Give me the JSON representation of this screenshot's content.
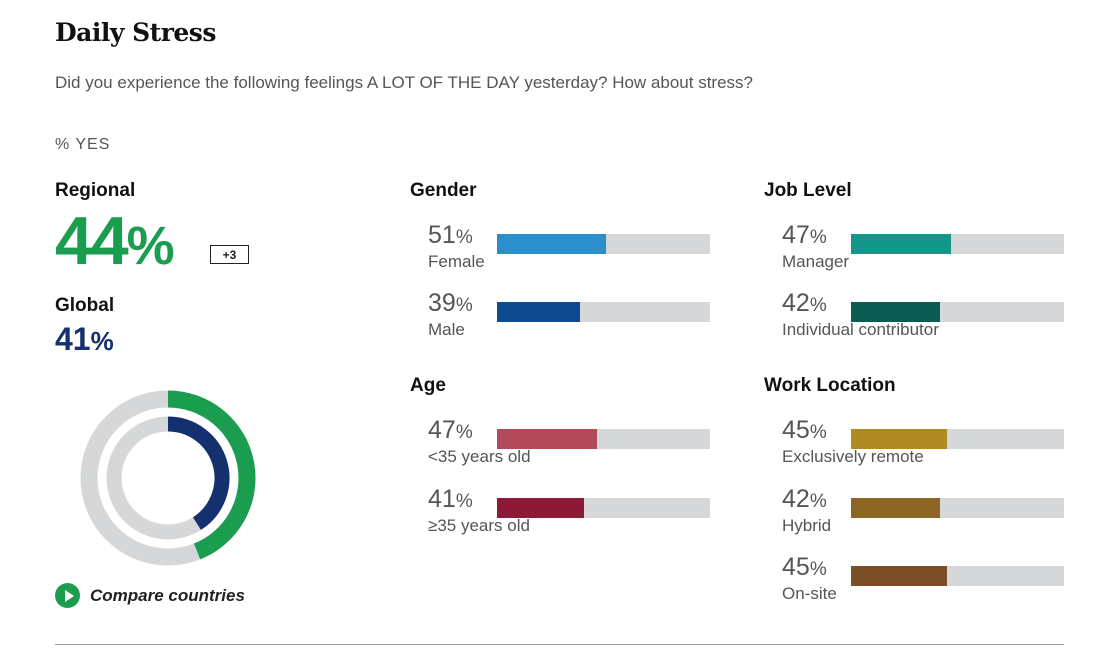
{
  "header": {
    "title": "Daily Stress",
    "question": "Did you experience the following feelings A LOT OF THE DAY yesterday? How about stress?",
    "metric_label": "% YES"
  },
  "summary": {
    "regional_label": "Regional",
    "regional_value": "44",
    "regional_pct_sign": "%",
    "regional_delta": "+3",
    "global_label": "Global",
    "global_value": "41",
    "global_pct_sign": "%",
    "compare_label": "Compare countries"
  },
  "colors": {
    "regional": "#1a9d4f",
    "global": "#14306e",
    "track": "#d5d7d9",
    "female": "#2a8fca",
    "male": "#0d4a8f",
    "under35": "#b24a5c",
    "over35": "#8e1838",
    "manager": "#13978a",
    "individual": "#0b5b53",
    "remote": "#b08a22",
    "hybrid": "#8c6523",
    "onsite": "#7a4e27"
  },
  "chart_data": [
    {
      "type": "pie",
      "title": "Daily Stress - Regional vs Global",
      "series": [
        {
          "name": "Regional",
          "value": 44,
          "max": 100
        },
        {
          "name": "Global",
          "value": 41,
          "max": 100
        }
      ]
    },
    {
      "type": "bar",
      "title": "Gender",
      "categories": [
        "Female",
        "Male"
      ],
      "values": [
        51,
        39
      ],
      "ylim": [
        0,
        100
      ]
    },
    {
      "type": "bar",
      "title": "Age",
      "categories": [
        "<35 years old",
        "≥35 years old"
      ],
      "values": [
        47,
        41
      ],
      "ylim": [
        0,
        100
      ]
    },
    {
      "type": "bar",
      "title": "Job Level",
      "categories": [
        "Manager",
        "Individual contributor"
      ],
      "values": [
        47,
        42
      ],
      "ylim": [
        0,
        100
      ]
    },
    {
      "type": "bar",
      "title": "Work Location",
      "categories": [
        "Exclusively remote",
        "Hybrid",
        "On-site"
      ],
      "values": [
        45,
        42,
        45
      ],
      "ylim": [
        0,
        100
      ]
    }
  ],
  "groups": {
    "gender": {
      "heading": "Gender",
      "rows": [
        {
          "value": "51",
          "pct_sign": "%",
          "label": "Female",
          "color_key": "female"
        },
        {
          "value": "39",
          "pct_sign": "%",
          "label": "Male",
          "color_key": "male"
        }
      ]
    },
    "age": {
      "heading": "Age",
      "rows": [
        {
          "value": "47",
          "pct_sign": "%",
          "label": "<35 years old",
          "color_key": "under35"
        },
        {
          "value": "41",
          "pct_sign": "%",
          "label": "≥35 years old",
          "color_key": "over35"
        }
      ]
    },
    "job_level": {
      "heading": "Job Level",
      "rows": [
        {
          "value": "47",
          "pct_sign": "%",
          "label": "Manager",
          "color_key": "manager"
        },
        {
          "value": "42",
          "pct_sign": "%",
          "label": "Individual contributor",
          "color_key": "individual"
        }
      ]
    },
    "work_location": {
      "heading": "Work Location",
      "rows": [
        {
          "value": "45",
          "pct_sign": "%",
          "label": "Exclusively remote",
          "color_key": "remote"
        },
        {
          "value": "42",
          "pct_sign": "%",
          "label": "Hybrid",
          "color_key": "hybrid"
        },
        {
          "value": "45",
          "pct_sign": "%",
          "label": "On-site",
          "color_key": "onsite"
        }
      ]
    }
  }
}
